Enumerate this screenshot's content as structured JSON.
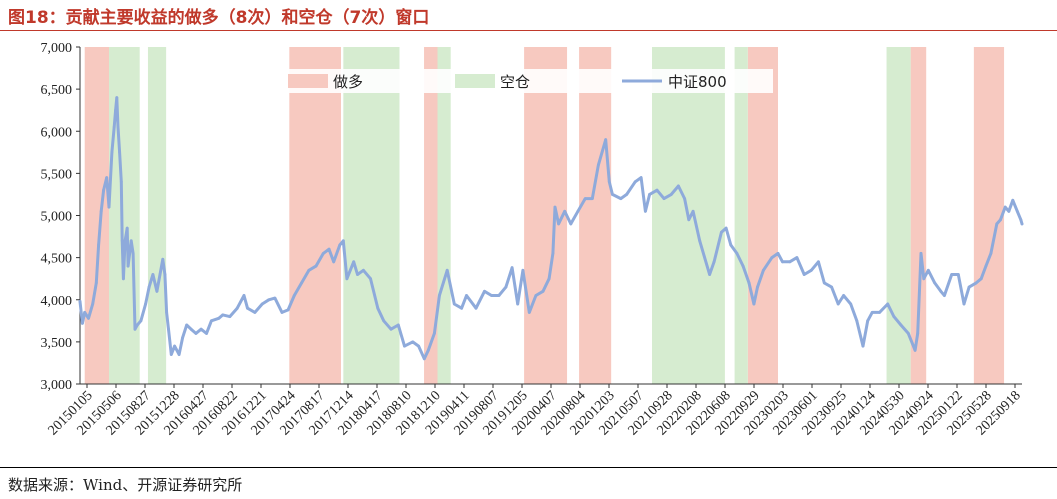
{
  "title": "图18：贡献主要收益的做多（8次）和空仓（7次）窗口",
  "source": "数据来源：Wind、开源证券研究所",
  "colors": {
    "long": "#f7c9c0",
    "cash": "#d6ecd0",
    "line": "#8eaadb",
    "title": "#c0392b"
  },
  "chart_data": {
    "type": "line",
    "title": "",
    "xlabel": "",
    "ylabel": "",
    "ylim": [
      3000,
      7000
    ],
    "yticks": [
      3000,
      3500,
      4000,
      4500,
      5000,
      5500,
      6000,
      6500,
      7000
    ],
    "ytick_labels": [
      "3,000",
      "3,500",
      "4,000",
      "4,500",
      "5,000",
      "5,500",
      "6,000",
      "6,500",
      "7,000"
    ],
    "xlim": [
      "2015-01-05",
      "2025-12-10"
    ],
    "xtick_labels": [
      "20150105",
      "20150506",
      "20150827",
      "20151228",
      "20160427",
      "20160822",
      "20161221",
      "20170424",
      "20170817",
      "20171214",
      "20180417",
      "20180810",
      "20181210",
      "20190411",
      "20190807",
      "20191205",
      "20200407",
      "20200804",
      "20201203",
      "20210507",
      "20210928",
      "20220208",
      "20220608",
      "20220929",
      "20230203",
      "20230601",
      "20230925",
      "20240124",
      "20240530",
      "20240924",
      "20250122",
      "20250528",
      "20250918"
    ],
    "legend": {
      "placement": "top",
      "items": [
        {
          "label": "做多",
          "kind": "long"
        },
        {
          "label": "空仓",
          "kind": "cash"
        },
        {
          "label": "中证800",
          "kind": "line"
        }
      ]
    },
    "long_windows": [
      [
        "2015-01-25",
        "2015-05-08"
      ],
      [
        "2017-06-10",
        "2018-01-15"
      ],
      [
        "2019-01-02",
        "2019-02-28"
      ],
      [
        "2020-03-01",
        "2020-08-30"
      ],
      [
        "2020-10-20",
        "2021-03-05"
      ],
      [
        "2022-10-05",
        "2023-02-10"
      ],
      [
        "2024-08-25",
        "2024-10-30"
      ],
      [
        "2025-05-20",
        "2025-09-25"
      ]
    ],
    "cash_windows": [
      [
        "2015-05-08",
        "2015-09-15"
      ],
      [
        "2015-10-20",
        "2016-01-05"
      ],
      [
        "2018-01-25",
        "2018-09-20"
      ],
      [
        "2019-02-28",
        "2019-04-25"
      ],
      [
        "2021-08-25",
        "2022-06-30"
      ],
      [
        "2022-08-10",
        "2022-10-05"
      ],
      [
        "2024-05-15",
        "2024-08-25"
      ]
    ],
    "series": [
      {
        "name": "中证800",
        "points": [
          [
            "2015-01-05",
            3980
          ],
          [
            "2015-01-15",
            3720
          ],
          [
            "2015-01-25",
            3850
          ],
          [
            "2015-02-10",
            3780
          ],
          [
            "2015-02-28",
            3950
          ],
          [
            "2015-03-15",
            4200
          ],
          [
            "2015-03-25",
            4650
          ],
          [
            "2015-04-05",
            5050
          ],
          [
            "2015-04-15",
            5300
          ],
          [
            "2015-04-28",
            5450
          ],
          [
            "2015-05-08",
            5100
          ],
          [
            "2015-05-20",
            5750
          ],
          [
            "2015-05-30",
            6050
          ],
          [
            "2015-06-05",
            6250
          ],
          [
            "2015-06-10",
            6400
          ],
          [
            "2015-06-15",
            6050
          ],
          [
            "2015-06-22",
            5750
          ],
          [
            "2015-06-29",
            5400
          ],
          [
            "2015-07-03",
            4700
          ],
          [
            "2015-07-08",
            4250
          ],
          [
            "2015-07-15",
            4700
          ],
          [
            "2015-07-24",
            4850
          ],
          [
            "2015-07-28",
            4400
          ],
          [
            "2015-08-10",
            4700
          ],
          [
            "2015-08-18",
            4550
          ],
          [
            "2015-08-26",
            3650
          ],
          [
            "2015-09-05",
            3700
          ],
          [
            "2015-09-20",
            3750
          ],
          [
            "2015-10-10",
            3950
          ],
          [
            "2015-10-25",
            4150
          ],
          [
            "2015-11-10",
            4300
          ],
          [
            "2015-11-27",
            4100
          ],
          [
            "2015-12-10",
            4300
          ],
          [
            "2015-12-22",
            4480
          ],
          [
            "2015-12-31",
            4300
          ],
          [
            "2016-01-07",
            3850
          ],
          [
            "2016-01-15",
            3650
          ],
          [
            "2016-01-27",
            3350
          ],
          [
            "2016-02-10",
            3450
          ],
          [
            "2016-02-29",
            3350
          ],
          [
            "2016-03-15",
            3550
          ],
          [
            "2016-04-01",
            3700
          ],
          [
            "2016-04-20",
            3650
          ],
          [
            "2016-05-10",
            3600
          ],
          [
            "2016-06-01",
            3650
          ],
          [
            "2016-06-24",
            3600
          ],
          [
            "2016-07-15",
            3750
          ],
          [
            "2016-08-15",
            3780
          ],
          [
            "2016-09-01",
            3820
          ],
          [
            "2016-10-01",
            3800
          ],
          [
            "2016-11-01",
            3900
          ],
          [
            "2016-11-30",
            4050
          ],
          [
            "2016-12-15",
            3900
          ],
          [
            "2017-01-15",
            3850
          ],
          [
            "2017-02-15",
            3950
          ],
          [
            "2017-03-15",
            4000
          ],
          [
            "2017-04-10",
            4020
          ],
          [
            "2017-05-10",
            3850
          ],
          [
            "2017-06-05",
            3880
          ],
          [
            "2017-07-01",
            4050
          ],
          [
            "2017-08-01",
            4200
          ],
          [
            "2017-09-01",
            4350
          ],
          [
            "2017-10-01",
            4400
          ],
          [
            "2017-11-01",
            4550
          ],
          [
            "2017-11-25",
            4600
          ],
          [
            "2017-12-15",
            4450
          ],
          [
            "2018-01-10",
            4650
          ],
          [
            "2018-01-25",
            4700
          ],
          [
            "2018-02-09",
            4250
          ],
          [
            "2018-03-10",
            4450
          ],
          [
            "2018-03-26",
            4300
          ],
          [
            "2018-04-20",
            4350
          ],
          [
            "2018-05-20",
            4250
          ],
          [
            "2018-06-20",
            3900
          ],
          [
            "2018-07-15",
            3750
          ],
          [
            "2018-08-15",
            3650
          ],
          [
            "2018-09-15",
            3700
          ],
          [
            "2018-10-11",
            3450
          ],
          [
            "2018-11-15",
            3500
          ],
          [
            "2018-12-10",
            3450
          ],
          [
            "2019-01-03",
            3300
          ],
          [
            "2019-01-20",
            3400
          ],
          [
            "2019-02-15",
            3600
          ],
          [
            "2019-03-08",
            4050
          ],
          [
            "2019-04-10",
            4350
          ],
          [
            "2019-05-10",
            3950
          ],
          [
            "2019-06-10",
            3900
          ],
          [
            "2019-07-01",
            4050
          ],
          [
            "2019-08-10",
            3900
          ],
          [
            "2019-09-15",
            4100
          ],
          [
            "2019-10-15",
            4050
          ],
          [
            "2019-11-15",
            4050
          ],
          [
            "2019-12-15",
            4150
          ],
          [
            "2020-01-10",
            4380
          ],
          [
            "2020-02-03",
            3950
          ],
          [
            "2020-02-25",
            4350
          ],
          [
            "2020-03-23",
            3850
          ],
          [
            "2020-04-20",
            4050
          ],
          [
            "2020-05-20",
            4100
          ],
          [
            "2020-06-15",
            4250
          ],
          [
            "2020-07-01",
            4550
          ],
          [
            "2020-07-10",
            5100
          ],
          [
            "2020-07-25",
            4900
          ],
          [
            "2020-08-20",
            5050
          ],
          [
            "2020-09-15",
            4900
          ],
          [
            "2020-10-15",
            5050
          ],
          [
            "2020-11-15",
            5200
          ],
          [
            "2020-12-15",
            5200
          ],
          [
            "2021-01-10",
            5600
          ],
          [
            "2021-02-10",
            5900
          ],
          [
            "2021-02-25",
            5400
          ],
          [
            "2021-03-10",
            5250
          ],
          [
            "2021-04-15",
            5200
          ],
          [
            "2021-05-10",
            5250
          ],
          [
            "2021-06-15",
            5400
          ],
          [
            "2021-07-10",
            5450
          ],
          [
            "2021-07-28",
            5050
          ],
          [
            "2021-08-15",
            5250
          ],
          [
            "2021-09-15",
            5300
          ],
          [
            "2021-10-15",
            5200
          ],
          [
            "2021-11-15",
            5250
          ],
          [
            "2021-12-15",
            5350
          ],
          [
            "2022-01-10",
            5200
          ],
          [
            "2022-01-28",
            4950
          ],
          [
            "2022-02-15",
            5050
          ],
          [
            "2022-03-15",
            4700
          ],
          [
            "2022-04-26",
            4300
          ],
          [
            "2022-05-15",
            4450
          ],
          [
            "2022-06-15",
            4800
          ],
          [
            "2022-07-05",
            4850
          ],
          [
            "2022-07-25",
            4650
          ],
          [
            "2022-08-20",
            4550
          ],
          [
            "2022-09-15",
            4400
          ],
          [
            "2022-10-10",
            4200
          ],
          [
            "2022-10-31",
            3950
          ],
          [
            "2022-11-15",
            4150
          ],
          [
            "2022-12-10",
            4350
          ],
          [
            "2023-01-15",
            4500
          ],
          [
            "2023-02-10",
            4550
          ],
          [
            "2023-03-01",
            4450
          ],
          [
            "2023-04-01",
            4450
          ],
          [
            "2023-05-01",
            4500
          ],
          [
            "2023-06-01",
            4300
          ],
          [
            "2023-07-01",
            4350
          ],
          [
            "2023-07-31",
            4450
          ],
          [
            "2023-08-25",
            4200
          ],
          [
            "2023-09-25",
            4150
          ],
          [
            "2023-10-23",
            3950
          ],
          [
            "2023-11-15",
            4050
          ],
          [
            "2023-12-15",
            3950
          ],
          [
            "2024-01-10",
            3750
          ],
          [
            "2024-02-05",
            3450
          ],
          [
            "2024-02-25",
            3750
          ],
          [
            "2024-03-15",
            3850
          ],
          [
            "2024-04-15",
            3850
          ],
          [
            "2024-05-20",
            3950
          ],
          [
            "2024-06-15",
            3800
          ],
          [
            "2024-07-15",
            3700
          ],
          [
            "2024-08-15",
            3600
          ],
          [
            "2024-09-13",
            3400
          ],
          [
            "2024-09-24",
            3600
          ],
          [
            "2024-10-08",
            4550
          ],
          [
            "2024-10-20",
            4250
          ],
          [
            "2024-11-08",
            4350
          ],
          [
            "2024-12-05",
            4200
          ],
          [
            "2024-12-31",
            4100
          ],
          [
            "2025-01-15",
            4050
          ],
          [
            "2025-02-15",
            4300
          ],
          [
            "2025-03-15",
            4300
          ],
          [
            "2025-04-08",
            3950
          ],
          [
            "2025-04-30",
            4150
          ],
          [
            "2025-05-30",
            4200
          ],
          [
            "2025-06-20",
            4250
          ],
          [
            "2025-07-10",
            4400
          ],
          [
            "2025-07-31",
            4550
          ],
          [
            "2025-08-25",
            4900
          ],
          [
            "2025-09-10",
            4950
          ],
          [
            "2025-09-30",
            5100
          ],
          [
            "2025-10-15",
            5050
          ],
          [
            "2025-11-01",
            5180
          ],
          [
            "2025-11-20",
            5050
          ],
          [
            "2025-12-05",
            4950
          ],
          [
            "2025-12-10",
            4900
          ]
        ]
      }
    ]
  }
}
